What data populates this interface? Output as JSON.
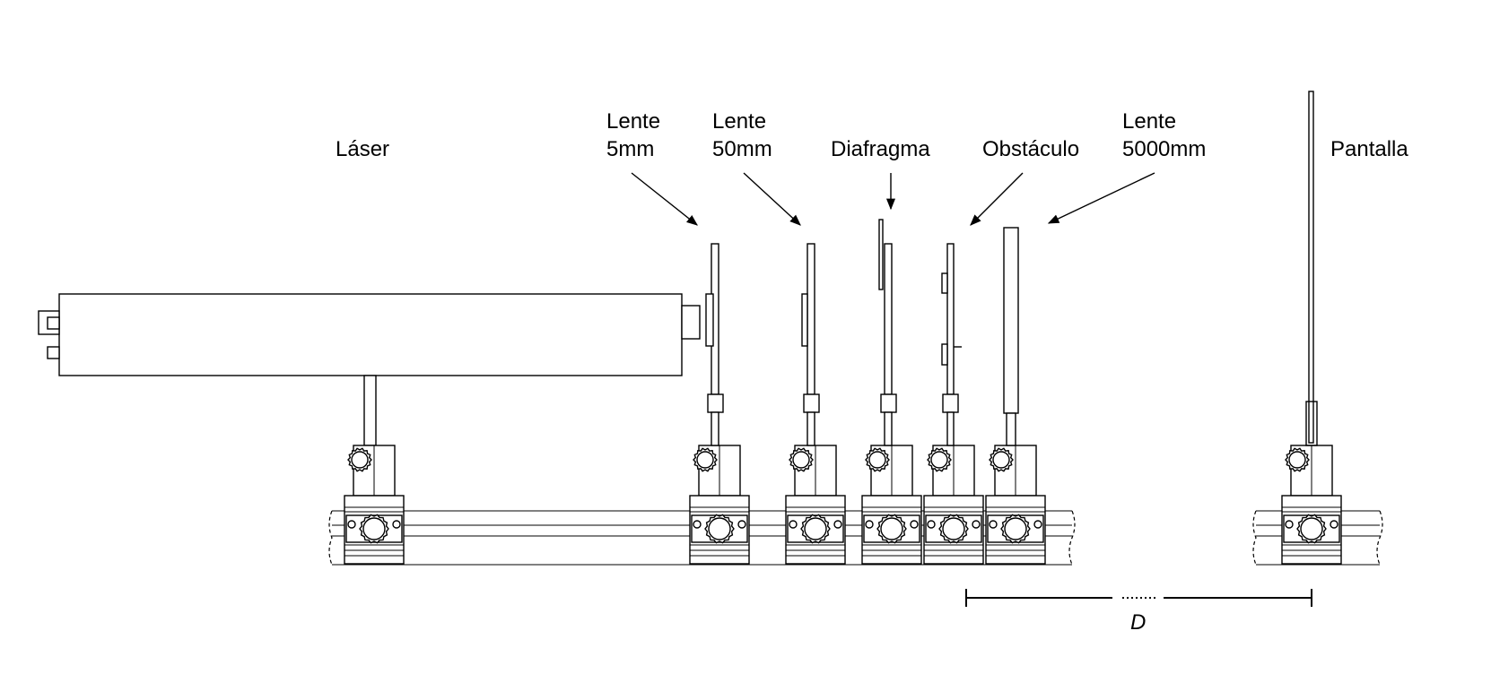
{
  "labels": {
    "laser": "Láser",
    "lens5_line1": "Lente",
    "lens5_line2": "5mm",
    "lens50_line1": "Lente",
    "lens50_line2": "50mm",
    "diaphragm": "Diafragma",
    "obstacle": "Obstáculo",
    "lens5000_line1": "Lente",
    "lens5000_line2": "5000mm",
    "screen": "Pantalla",
    "distance": "D"
  },
  "colors": {
    "stroke": "#000000",
    "background": "#ffffff"
  }
}
